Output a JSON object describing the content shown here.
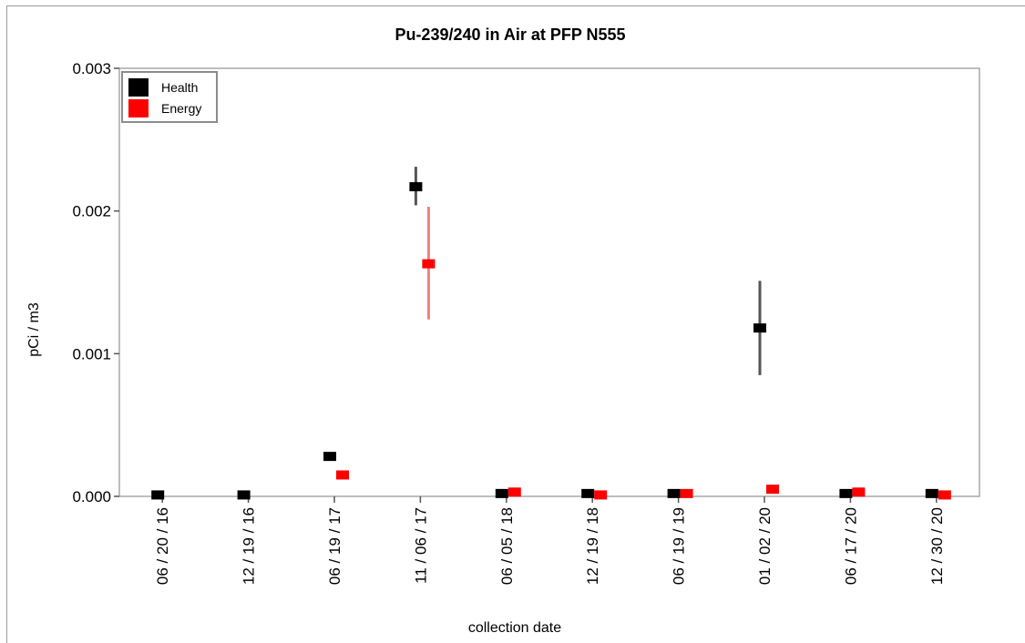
{
  "chart_data": {
    "type": "scatter",
    "title": "Pu-239/240 in Air at PFP N555",
    "xlabel": "collection date",
    "ylabel": "pCi / m3",
    "categories": [
      "06 / 20 / 16",
      "12 / 19 / 16",
      "06 / 19 / 17",
      "11 / 06 / 17",
      "06 / 05 / 18",
      "12 / 19 / 18",
      "06 / 19 / 19",
      "01 / 02 / 20",
      "06 / 17 / 20",
      "12 / 30 / 20"
    ],
    "ylim": [
      0,
      0.003
    ],
    "yticks": [
      "0.000",
      "0.001",
      "0.002",
      "0.003"
    ],
    "grid": false,
    "legend_position": "top-left",
    "series": [
      {
        "name": "Health",
        "color": "#000000",
        "errorbar_color": "#555555",
        "values": [
          1e-05,
          1e-05,
          0.00028,
          0.00217,
          2e-05,
          2e-05,
          2e-05,
          0.00118,
          2e-05,
          2e-05
        ],
        "errors": [
          null,
          null,
          null,
          [
            0.00204,
            0.00231
          ],
          null,
          null,
          null,
          [
            0.00085,
            0.00151
          ],
          null,
          null
        ]
      },
      {
        "name": "Energy",
        "color": "#ff0000",
        "errorbar_color": "#f08080",
        "values": [
          null,
          null,
          0.00015,
          0.00163,
          3e-05,
          1e-05,
          2e-05,
          5e-05,
          3e-05,
          1e-05
        ],
        "errors": [
          null,
          null,
          null,
          [
            0.00124,
            0.00203
          ],
          null,
          null,
          null,
          null,
          null,
          null
        ]
      }
    ]
  }
}
